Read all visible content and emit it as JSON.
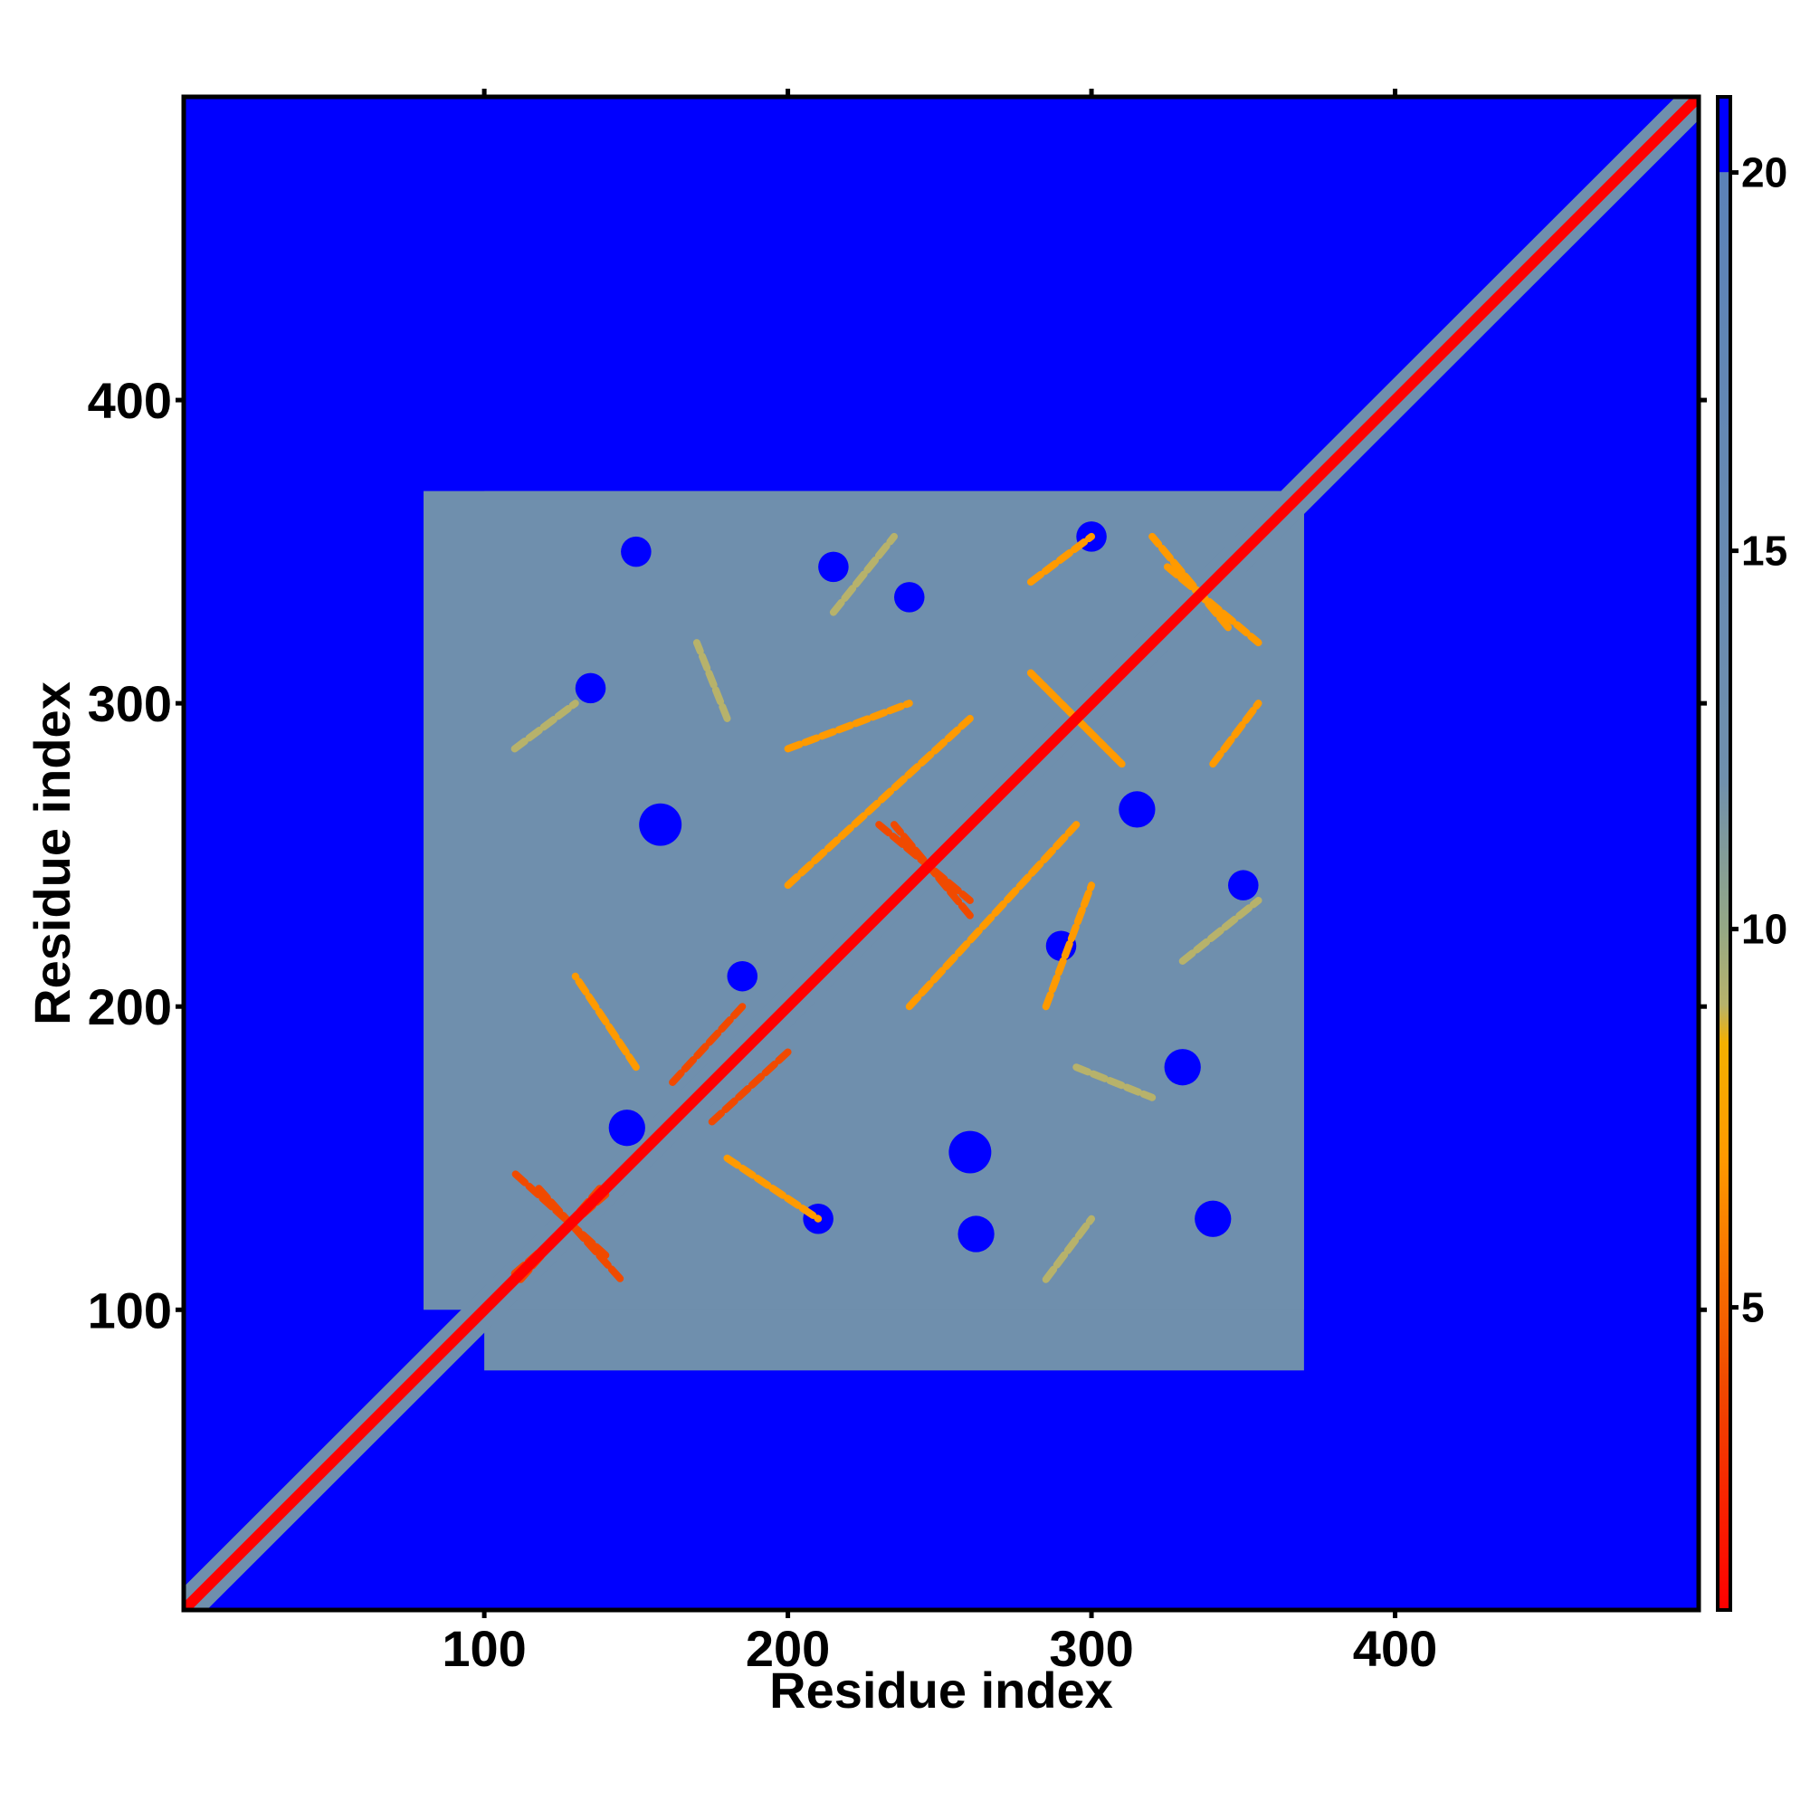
{
  "chart_data": {
    "type": "heatmap",
    "title": "",
    "xlabel": "Residue index",
    "ylabel": "Residue index",
    "xlim": [
      1,
      500
    ],
    "ylim": [
      1,
      500
    ],
    "x_ticks": [
      100,
      200,
      300,
      400
    ],
    "y_ticks": [
      100,
      200,
      300,
      400
    ],
    "grid": false,
    "colorbar": {
      "placement": "right",
      "ticks": [
        5,
        10,
        15,
        20
      ],
      "range": [
        1,
        21
      ],
      "colors": [
        {
          "value": 1,
          "color": "#ff0000"
        },
        {
          "value": 4,
          "color": "#f04a00"
        },
        {
          "value": 7,
          "color": "#ff9a00"
        },
        {
          "value": 8.5,
          "color": "#f4b000"
        },
        {
          "value": 9,
          "color": "#b7b26b"
        },
        {
          "value": 10,
          "color": "#95a885"
        },
        {
          "value": 12,
          "color": "#6f8fad"
        },
        {
          "value": 20,
          "color": "#5b82b8"
        },
        {
          "value": 20.01,
          "color": "#0000ff"
        },
        {
          "value": 21,
          "color": "#0000ff"
        }
      ]
    },
    "series": [
      {
        "kind": "diagonal",
        "from": 1,
        "to": 500,
        "value": 1
      },
      {
        "kind": "diagonal-halo",
        "from": 1,
        "to": 500,
        "value": 14
      },
      {
        "kind": "block",
        "x": [
          100,
          370
        ],
        "y": [
          80,
          370
        ],
        "value": 15
      },
      {
        "kind": "block",
        "x": [
          80,
          370
        ],
        "y": [
          100,
          370
        ],
        "value": 15
      },
      {
        "kind": "strand",
        "from": [
          110,
          112
        ],
        "to": [
          140,
          138
        ],
        "value": 6
      },
      {
        "kind": "strand",
        "from": [
          140,
          118
        ],
        "to": [
          110,
          145
        ],
        "value": 6
      },
      {
        "kind": "strand",
        "from": [
          175,
          162
        ],
        "to": [
          200,
          185
        ],
        "value": 6
      },
      {
        "kind": "strand",
        "from": [
          180,
          150
        ],
        "to": [
          210,
          130
        ],
        "value": 7
      },
      {
        "kind": "strand",
        "from": [
          200,
          240
        ],
        "to": [
          260,
          295
        ],
        "value": 8
      },
      {
        "kind": "strand",
        "from": [
          230,
          260
        ],
        "to": [
          260,
          235
        ],
        "value": 5
      },
      {
        "kind": "strand",
        "from": [
          280,
          310
        ],
        "to": [
          310,
          280
        ],
        "value": 7
      },
      {
        "kind": "strand",
        "from": [
          285,
          200
        ],
        "to": [
          300,
          240
        ],
        "value": 8
      },
      {
        "kind": "strand",
        "from": [
          325,
          345
        ],
        "to": [
          355,
          320
        ],
        "value": 7
      },
      {
        "kind": "strand",
        "from": [
          340,
          280
        ],
        "to": [
          355,
          300
        ],
        "value": 8
      },
      {
        "kind": "strand",
        "from": [
          110,
          285
        ],
        "to": [
          130,
          300
        ],
        "value": 9
      },
      {
        "kind": "strand",
        "from": [
          215,
          330
        ],
        "to": [
          235,
          355
        ],
        "value": 9
      },
      {
        "kind": "strand",
        "from": [
          295,
          180
        ],
        "to": [
          320,
          170
        ],
        "value": 9
      },
      {
        "kind": "hole",
        "x": 147,
        "y": 160,
        "r": 6,
        "value": 21
      },
      {
        "kind": "hole",
        "x": 158,
        "y": 260,
        "r": 7,
        "value": 21
      },
      {
        "kind": "hole",
        "x": 260,
        "y": 152,
        "r": 7,
        "value": 21
      },
      {
        "kind": "hole",
        "x": 262,
        "y": 125,
        "r": 6,
        "value": 21
      },
      {
        "kind": "hole",
        "x": 210,
        "y": 130,
        "r": 5,
        "value": 21
      },
      {
        "kind": "hole",
        "x": 185,
        "y": 210,
        "r": 5,
        "value": 21
      },
      {
        "kind": "hole",
        "x": 135,
        "y": 305,
        "r": 5,
        "value": 21
      },
      {
        "kind": "hole",
        "x": 315,
        "y": 265,
        "r": 6,
        "value": 21
      },
      {
        "kind": "hole",
        "x": 240,
        "y": 335,
        "r": 5,
        "value": 21
      },
      {
        "kind": "hole",
        "x": 290,
        "y": 220,
        "r": 5,
        "value": 21
      },
      {
        "kind": "hole",
        "x": 330,
        "y": 180,
        "r": 6,
        "value": 21
      },
      {
        "kind": "hole",
        "x": 340,
        "y": 130,
        "r": 6,
        "value": 21
      },
      {
        "kind": "hole",
        "x": 150,
        "y": 350,
        "r": 5,
        "value": 21
      },
      {
        "kind": "hole",
        "x": 300,
        "y": 355,
        "r": 5,
        "value": 21
      },
      {
        "kind": "hole",
        "x": 350,
        "y": 240,
        "r": 5,
        "value": 21
      },
      {
        "kind": "hole",
        "x": 215,
        "y": 345,
        "r": 5,
        "value": 21
      }
    ]
  }
}
